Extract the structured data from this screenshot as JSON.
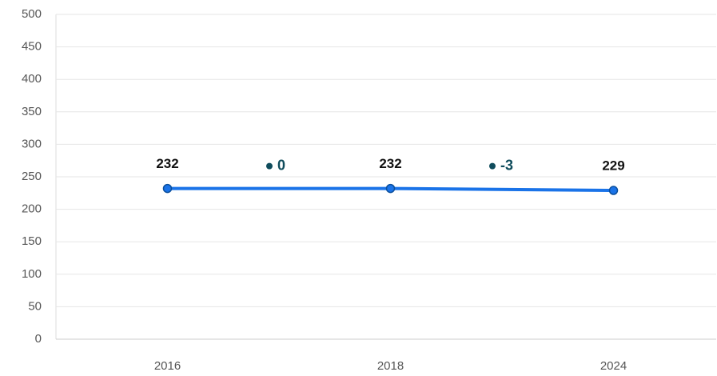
{
  "chart_data": {
    "type": "line",
    "categories": [
      "2016",
      "2018",
      "2024"
    ],
    "series": [
      {
        "name": "Value",
        "color": "#1a73e8",
        "values": [
          232,
          232,
          229
        ]
      }
    ],
    "changes": [
      0,
      -3
    ],
    "ylim": [
      0,
      500
    ],
    "yticks": [
      0,
      50,
      100,
      150,
      200,
      250,
      300,
      350,
      400,
      450,
      500
    ],
    "grid": true
  }
}
